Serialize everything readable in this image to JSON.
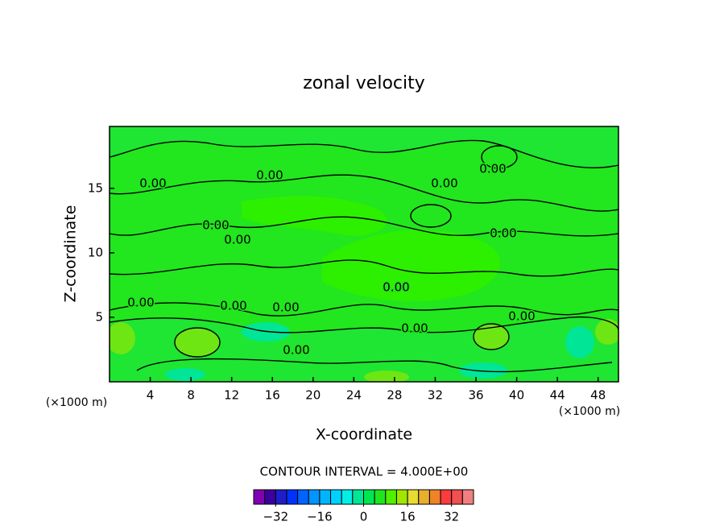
{
  "chart_data": {
    "type": "contour",
    "title": "zonal velocity",
    "x_label": "X-coordinate",
    "y_label": "Z-coordinate",
    "x_unit_label": "(×1000 m)",
    "xlim": [
      0,
      50
    ],
    "xticks": [
      4,
      8,
      12,
      16,
      20,
      24,
      28,
      32,
      36,
      40,
      44,
      48
    ],
    "ylim": [
      0,
      19.8
    ],
    "yticks": [
      5,
      10,
      15
    ],
    "contour_labels": [
      "0.00",
      "0.00",
      "0.00",
      "0.00",
      "0.00",
      "0.00",
      "0.00",
      "0.00",
      "0.00",
      "0.00",
      "0.00",
      "0.00",
      "0.00",
      "0.00"
    ],
    "contour_interval_text": "CONTOUR INTERVAL = 4.000E+00",
    "colorbar": {
      "bounds": [
        -40,
        -36,
        -32,
        -28,
        -24,
        -20,
        -16,
        -12,
        -8,
        -4,
        0,
        4,
        8,
        12,
        16,
        20,
        24,
        28,
        32,
        36,
        40
      ],
      "colors": [
        "#8200b4",
        "#3c00a0",
        "#1e1ec8",
        "#0032ff",
        "#0064ff",
        "#0096ff",
        "#00b4ff",
        "#00d2ff",
        "#00f0e6",
        "#00e696",
        "#00e650",
        "#1ee61e",
        "#50f000",
        "#a0e600",
        "#e6dc32",
        "#e6af2d",
        "#f08228",
        "#fa3c3c",
        "#f05050",
        "#f08080"
      ],
      "ticks": [
        {
          "value": -32,
          "label": "−32"
        },
        {
          "value": -16,
          "label": "−16"
        },
        0,
        16,
        32
      ]
    }
  }
}
